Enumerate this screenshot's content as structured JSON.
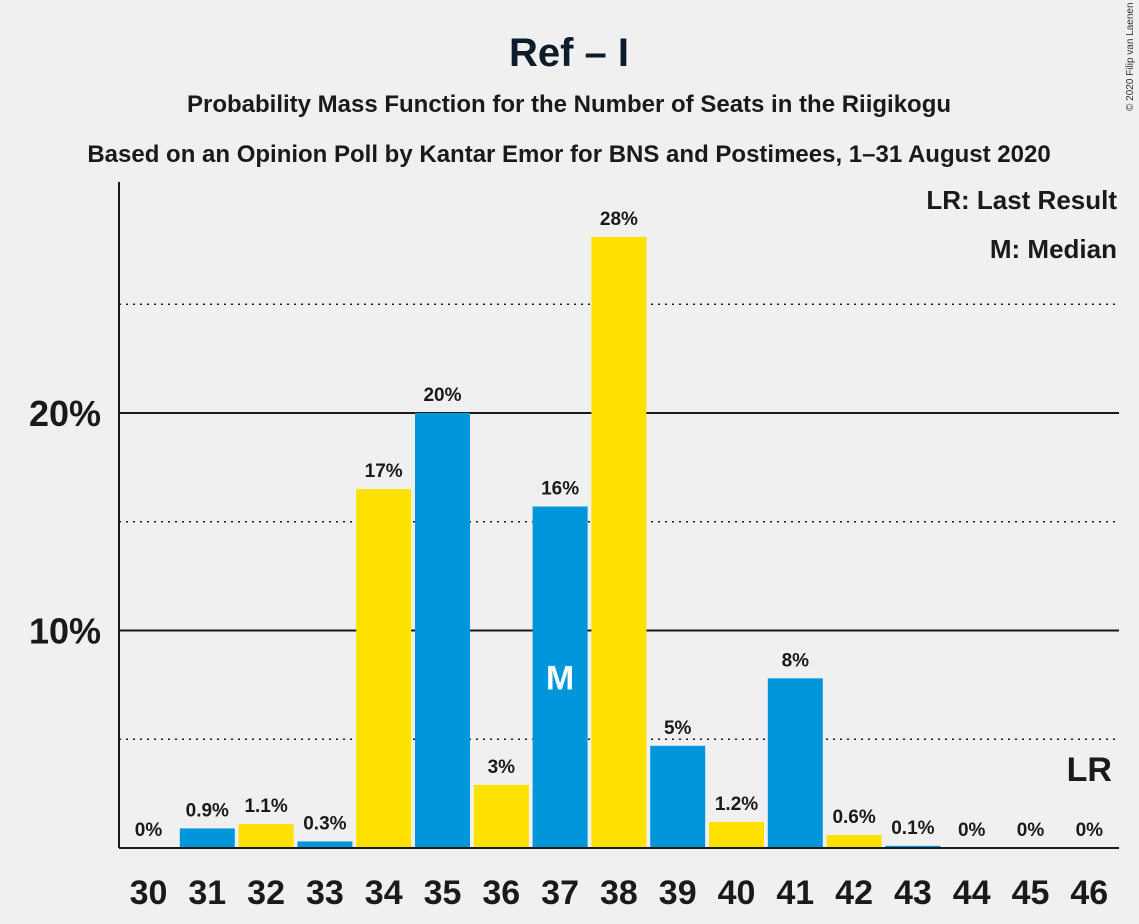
{
  "chart_data": {
    "type": "bar",
    "title": "Ref – I",
    "subtitle_1": "Probability Mass Function for the Number of Seats in the Riigikogu",
    "subtitle_2": "Based on an Opinion Poll by Kantar Emor for BNS and Postimees, 1–31 August 2020",
    "copyright": "© 2020 Filip van Laenen",
    "legend": {
      "last_result": "LR: Last Result",
      "median": "M: Median"
    },
    "categories": [
      "30",
      "31",
      "32",
      "33",
      "34",
      "35",
      "36",
      "37",
      "38",
      "39",
      "40",
      "41",
      "42",
      "43",
      "44",
      "45",
      "46"
    ],
    "values": [
      0,
      0.9,
      1.1,
      0.3,
      16.5,
      20.0,
      2.9,
      15.7,
      28.1,
      4.7,
      1.2,
      7.8,
      0.6,
      0.1,
      0,
      0,
      0
    ],
    "labels": [
      "0%",
      "0.9%",
      "1.1%",
      "0.3%",
      "17%",
      "20%",
      "3%",
      "16%",
      "28%",
      "5%",
      "1.2%",
      "8%",
      "0.6%",
      "0.1%",
      "0%",
      "0%",
      "0%"
    ],
    "bar_colors": [
      "#0096dc",
      "#0096dc",
      "#ffe100",
      "#0096dc",
      "#ffe100",
      "#0096dc",
      "#ffe100",
      "#0096dc",
      "#ffe100",
      "#0096dc",
      "#ffe100",
      "#0096dc",
      "#ffe100",
      "#0096dc",
      "#ffe100",
      "#0096dc",
      "#ffe100"
    ],
    "median_seat": "37",
    "median_label": "M",
    "last_result_seat": "46",
    "last_result_label": "LR",
    "ylim": [
      0,
      30.5
    ],
    "y_major_ticks": [
      10,
      20
    ],
    "y_major_tick_labels": [
      "10%",
      "20%"
    ],
    "y_minor_gridlines": [
      5,
      15,
      25
    ],
    "grid": true,
    "legend_position": "top-right"
  }
}
